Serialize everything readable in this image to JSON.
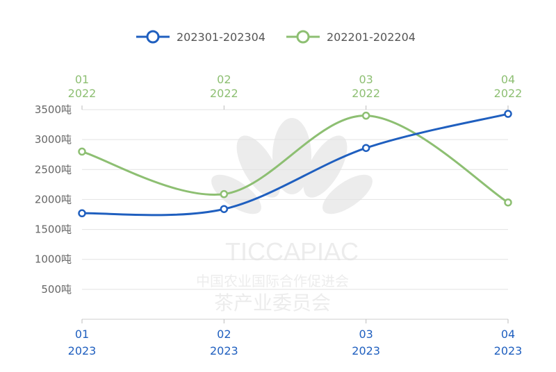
{
  "chart_data": {
    "type": "line",
    "y_unit": "吨",
    "y_ticks": [
      500,
      1000,
      1500,
      2000,
      2500,
      3000,
      3500
    ],
    "ylim": [
      0,
      3500
    ],
    "grid": true,
    "legend_position": "top-center",
    "x_bottom": {
      "months": [
        "01",
        "02",
        "03",
        "04"
      ],
      "year": "2023"
    },
    "x_top": {
      "months": [
        "01",
        "02",
        "03",
        "04"
      ],
      "year": "2022"
    },
    "series": [
      {
        "name": "202301-202304",
        "color": "#1f5fbf",
        "x": [
          "2023-01",
          "2023-02",
          "2023-03",
          "2023-04"
        ],
        "values": [
          1770,
          1840,
          2860,
          3430
        ]
      },
      {
        "name": "202201-202204",
        "color": "#8dbf72",
        "x": [
          "2022-01",
          "2022-02",
          "2022-03",
          "2022-04"
        ],
        "values": [
          2800,
          2090,
          3400,
          1950
        ]
      }
    ]
  },
  "watermark": {
    "line1": "TICCAPIAC",
    "line2": "中国农业国际合作促进会",
    "line3": "茶产业委员会"
  }
}
